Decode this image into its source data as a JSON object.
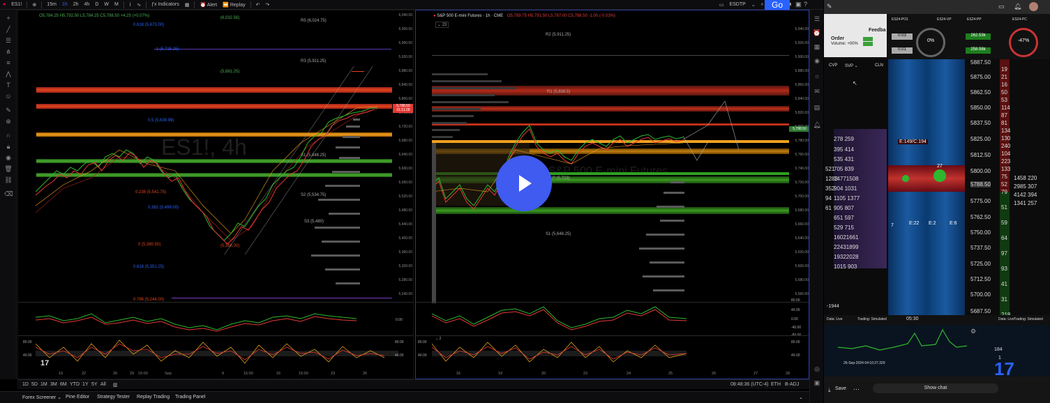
{
  "toolbar": {
    "symbol": "ES1!",
    "intervals": [
      "15m",
      "1h",
      "2h",
      "4h",
      "D",
      "W",
      "M"
    ],
    "indicators_label": "Indicators",
    "alert_label": "Alert",
    "replay_label": "Replay",
    "layout_name": "ESDTP",
    "go_label": "Go"
  },
  "left_chart": {
    "watermark": "ES1!, 4h",
    "ohlc": "O5,784.25 H5,792.50 L5,784.25 C5,788.50 +4.25 (+0.07%)",
    "price_labels": [
      "6,040.00",
      "6,000.00",
      "5,960.00",
      "5,920.00",
      "5,880.00",
      "5,840.00",
      "5,800.00",
      "5,760.00",
      "5,720.00",
      "5,680.00",
      "5,640.00",
      "5,600.00",
      "5,560.00",
      "5,520.00",
      "5,480.00",
      "5,440.00",
      "5,400.00",
      "5,360.00",
      "5,320.00",
      "5,280.00",
      "5,240.00"
    ],
    "current_price": "5,788.50",
    "current_time": "01:11:28",
    "levels": [
      "R5 (6,024.75)",
      "R3 (5,911.25)",
      "(5,881.25)",
      "S1 (5,648.25)",
      "S2 (5,534.75)",
      "S3 (5,480)",
      "(6,032.56)",
      "0.618 (5,673.00)",
      "1 (5,715.25)",
      "0.5 (5,639.99)",
      "0.236 (5,541.75)",
      "0.382 (5,499.00)",
      "0 (5,380.50)",
      "0.618 (5,351.25)",
      "0.786 (5,244.00)",
      "(5,366.00)"
    ],
    "osc_values": [
      "0.00",
      "80.00",
      "40.00"
    ],
    "dates": [
      "19",
      "22",
      "26",
      "29",
      "15:00",
      "Sep",
      "9",
      "15:00",
      "16",
      "15:00",
      "23",
      "26"
    ]
  },
  "right_chart": {
    "title": "S&P 500 E-mini Futures · 1h · CME",
    "ohlc": "O5,789.75 H5,791.50 L5,787.00 C5,788.50 -1.00 (-0.03%)",
    "indicator_count": "23",
    "watermark": "S&P 500 E-mini Futures",
    "price_labels": [
      "5,940.00",
      "5,920.00",
      "5,900.00",
      "5,880.00",
      "5,860.00",
      "5,840.00",
      "5,820.00",
      "5,800.00",
      "5,780.00",
      "5,760.00",
      "5,740.00",
      "5,720.00",
      "5,700.00",
      "5,680.00",
      "5,660.00",
      "5,640.00",
      "5,620.00",
      "5,600.00",
      "5,580.00",
      "5,560.00"
    ],
    "current_price": "5,788.50",
    "levels": [
      "R2 (5,911.25)",
      "R1 (5,838.5)",
      "P (5,723)",
      "S1 (5,648.25)"
    ],
    "osc_values": [
      "80.00",
      "40.00",
      "0.00",
      "-40.00",
      "-80.00"
    ],
    "osc_label": "2",
    "dates": [
      "16",
      "19",
      "20",
      "23",
      "24",
      "25",
      "26",
      "27",
      "28"
    ]
  },
  "range_bar": {
    "ranges": [
      "1D",
      "5D",
      "1M",
      "3M",
      "6M",
      "YTD",
      "1Y",
      "5Y",
      "All"
    ],
    "clock": "08:48:36 (UTC-4)",
    "session": "ETH",
    "adj": "B-ADJ"
  },
  "panel_bar": {
    "tabs": [
      "Forex Screener",
      "Pine Editor",
      "Strategy Tester",
      "Replay Trading",
      "Trading Panel"
    ]
  },
  "video": {
    "order_label": "Order",
    "volume_label": "Volume: +00%",
    "feed_label": "Feedba",
    "tabs": [
      "CVP",
      "SVP",
      "CLN"
    ],
    "header_labels": [
      "ES24-PO1",
      "ES24-VP",
      "ES24-PP",
      "ES24-PC"
    ],
    "gauge_left": "0%",
    "gauge_right": "-47%",
    "aggr_sells": "0.03",
    "aggr_buys": "0.01",
    "aggr_sells2": "262.53k",
    "aggr_buys2": "258.58k",
    "prices": [
      "5887.50",
      "5875.00",
      "5862.50",
      "5850.00",
      "5837.50",
      "5825.00",
      "5812.50",
      "5800.00",
      "5788.50",
      "5775.00",
      "5762.50",
      "5750.00",
      "5737.50",
      "5725.00",
      "5712.50",
      "5700.00",
      "5687.50"
    ],
    "dom_left": [
      "278 259",
      "395 414",
      "535 431",
      "705 839",
      "14771508",
      "904 1031",
      "1105 1377",
      "905 807",
      "651 597",
      "529 715",
      "16021661",
      "22431899",
      "19322028",
      "1015 903"
    ],
    "dom_left_small": [
      "521",
      "1283",
      "352",
      "94",
      "61"
    ],
    "ladder_right": [
      "19",
      "21",
      "16",
      "50",
      "53",
      "114",
      "87",
      "81",
      "134",
      "130",
      "240",
      "104",
      "223",
      "133",
      "75",
      "52",
      "79",
      "51",
      "59",
      "64",
      "97",
      "93",
      "41",
      "31",
      "218"
    ],
    "right_big": [
      "1458 220",
      "2985 307",
      "4142 394",
      "1341 257"
    ],
    "marker": "E:149/C:194",
    "cell_27": "27",
    "e_labels": [
      "E:22",
      "E:2",
      "E:6"
    ],
    "row_7": "7",
    "minus_1944": "-1944",
    "status_left": "Data: Live",
    "status_mid": "Trading: Simulated",
    "time_label": "05:30",
    "date_label": "26-Sep-2024 04:10:27.329",
    "value_184": "184",
    "value_1": "1",
    "save_label": "Save",
    "chat_label": "Show chat",
    "logo": "17"
  }
}
